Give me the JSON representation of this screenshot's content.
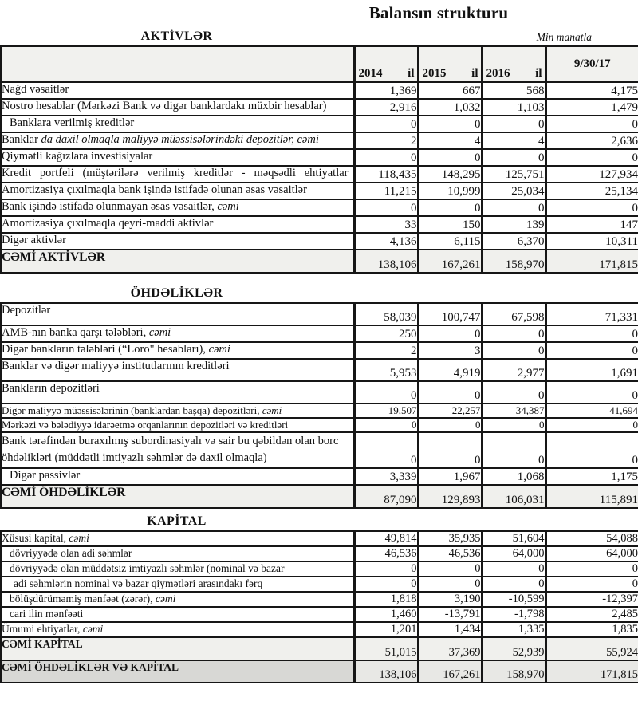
{
  "title": "Balansın strukturu",
  "unit_note": "Min manatla",
  "table_header": {
    "years": [
      "2014",
      "2015",
      "2016"
    ],
    "year_suffix": "il",
    "last_col": "9/30/17"
  },
  "colors": {
    "border": "#161616",
    "header_bg": "#f1f1ee",
    "total_row_bg": "#f0f0ed",
    "grand_label_bg": "#d8d8d5",
    "grand_value_bg": "#e8e8e5"
  },
  "sections": [
    {
      "heading": "AKTİVLƏR",
      "rows": [
        {
          "label": "Nağd vəsaitlər",
          "values": [
            "1,369",
            "667",
            "568",
            "4,175"
          ]
        },
        {
          "label": "Nostro hesablar (Mərkəzi Bank və digər banklardakı müxbir hesablar)",
          "values": [
            "2,916",
            "1,032",
            "1,103",
            "1,479"
          ]
        },
        {
          "label": "Banklara verilmiş kreditlər",
          "indent": 1,
          "values": [
            "0",
            "0",
            "0",
            "0"
          ]
        },
        {
          "label": "Banklar ",
          "italic": "da daxil olmaqla maliyyə müəssisələrindəki depozitlər, cəmi",
          "values": [
            "2",
            "4",
            "4",
            "2,636"
          ]
        },
        {
          "label": "Qiymətli kağızlara investisiyalar",
          "values": [
            "0",
            "0",
            "0",
            "0"
          ]
        },
        {
          "label": "Kredit portfeli (müştərilərə verilmiş kreditlər - məqsədli ehtiyatlar",
          "justify": true,
          "values": [
            "118,435",
            "148,295",
            "125,751",
            "127,934"
          ]
        },
        {
          "label": "Amortizasiya çıxılmaqla bank işində istifadə olunan əsas vəsaitlər",
          "values": [
            "11,215",
            "10,999",
            "25,034",
            "25,134"
          ]
        },
        {
          "label": "Bank işində istifadə olunmayan əsas vəsaitlər, ",
          "italic": "cəmi",
          "values": [
            "0",
            "0",
            "0",
            "0"
          ]
        },
        {
          "label": "Amortizasiya çıxılmaqla qeyri-maddi aktivlər",
          "values": [
            "33",
            "150",
            "139",
            "147"
          ]
        },
        {
          "label": "Digər aktivlər",
          "values": [
            "4,136",
            "6,115",
            "6,370",
            "10,311"
          ]
        },
        {
          "label": "CƏMİ AKTİVLƏR",
          "style": "total",
          "values": [
            "138,106",
            "167,261",
            "158,970",
            "171,815"
          ]
        }
      ]
    },
    {
      "heading": "ÖHDƏLİKLƏR",
      "rows": [
        {
          "label": "Depozitlər",
          "tall": true,
          "values": [
            "58,039",
            "100,747",
            "67,598",
            "71,331"
          ]
        },
        {
          "label": "AMB-nın banka qarşı tələbləri, ",
          "italic": "cəmi",
          "values": [
            "250",
            "0",
            "0",
            "0"
          ]
        },
        {
          "label": "Digər bankların tələbləri (“Loro\" hesabları), ",
          "italic": "cəmi",
          "values": [
            "2",
            "3",
            "0",
            "0"
          ]
        },
        {
          "label": "Banklar və digər maliyyə institutlarının kreditləri",
          "tall": true,
          "values": [
            "5,953",
            "4,919",
            "2,977",
            "1,691"
          ]
        },
        {
          "label": "Bankların depozitləri",
          "tall": true,
          "values": [
            "0",
            "0",
            "0",
            "0"
          ]
        },
        {
          "label": "Digər maliyyə müəssisələrinin (banklardan başqa) depozitləri, ",
          "italic": "cəmi",
          "small": true,
          "values": [
            "19,507",
            "22,257",
            "34,387",
            "41,694"
          ]
        },
        {
          "label": "Mərkəzi və bələdiyyə idarəetmə orqanlarının depozitləri və kreditləri",
          "small": true,
          "values": [
            "0",
            "0",
            "0",
            "0"
          ]
        },
        {
          "label": "Bank tərəfindən buraxılmış subordinasiyalı və sair bu qəbildən olan borc öhdəlikləri (müddətli imtiyazlı səhmlər də daxil olmaqla)",
          "twoline": true,
          "values": [
            "0",
            "0",
            "0",
            "0"
          ]
        },
        {
          "label": "Digər passivlər",
          "indent": 1,
          "values": [
            "3,339",
            "1,967",
            "1,068",
            "1,175"
          ]
        },
        {
          "label": "CƏMİ ÖHDƏLİKLƏR",
          "style": "total",
          "values": [
            "87,090",
            "129,893",
            "106,031",
            "115,891"
          ]
        }
      ]
    },
    {
      "heading": "KAPİTAL",
      "compact": true,
      "rows": [
        {
          "label": "Xüsusi kapital, ",
          "italic": "cəmi",
          "values": [
            "49,814",
            "35,935",
            "51,604",
            "54,088"
          ]
        },
        {
          "label": "dövriyyədə olan adi səhmlər",
          "indent": 1,
          "values": [
            "46,536",
            "46,536",
            "64,000",
            "64,000"
          ]
        },
        {
          "label": "dövriyyədə olan müddətsiz imtiyazlı səhmlər (nominal və bazar",
          "indent": 1,
          "values": [
            "0",
            "0",
            "0",
            "0"
          ]
        },
        {
          "label": "adi səhmlərin nominal və bazar qiymətləri arasındakı fərq",
          "indent": 2,
          "values": [
            "0",
            "0",
            "0",
            "0"
          ]
        },
        {
          "label": "bölüşdürüməmiş mənfəət (zərər), ",
          "italic": "cəmi",
          "indent": 1,
          "values": [
            "1,818",
            "3,190",
            "-10,599",
            "-12,397"
          ]
        },
        {
          "label": "cari ilin mənfəəti",
          "indent": 1,
          "values": [
            "1,460",
            "-13,791",
            "-1,798",
            "2,485"
          ]
        },
        {
          "label": "Ümumi ehtiyatlar, ",
          "italic": "cəmi",
          "values": [
            "1,201",
            "1,434",
            "1,335",
            "1,835"
          ]
        },
        {
          "label": "CƏMİ KAPİTAL",
          "style": "total",
          "values": [
            "51,015",
            "37,369",
            "52,939",
            "55,924"
          ]
        },
        {
          "label": "CƏMİ ÖHDƏLİKLƏR VƏ KAPİTAL",
          "style": "grand",
          "values": [
            "138,106",
            "167,261",
            "158,970",
            "171,815"
          ]
        }
      ]
    }
  ]
}
